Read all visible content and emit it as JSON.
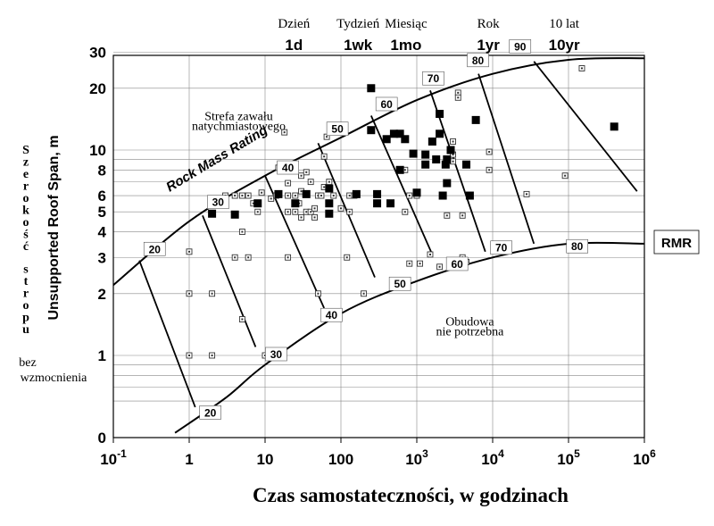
{
  "chart_data": {
    "type": "scatter",
    "title": "",
    "xlabel": "Czas samostateczności, w godzinach",
    "ylabel": "Unsupported Roof Span, m",
    "ylabel_polish": [
      "S",
      "z",
      "e",
      "r",
      "o",
      "k",
      "o",
      "ś",
      "ć",
      " ",
      "s",
      "t",
      "r",
      "o",
      "p",
      "u"
    ],
    "ylabel_polish_tail": [
      "bez",
      "wzmocnienia"
    ],
    "x_scale": "log",
    "y_scale": "log",
    "xlim": [
      0.1,
      1000000
    ],
    "ylim": [
      0.4,
      30
    ],
    "x_ticks": [
      {
        "value": 0.1,
        "base": "10",
        "exp": "-1"
      },
      {
        "value": 1,
        "base": "1",
        "exp": ""
      },
      {
        "value": 10,
        "base": "10",
        "exp": ""
      },
      {
        "value": 100,
        "base": "100",
        "exp": ""
      },
      {
        "value": 1000,
        "base": "10",
        "exp": "3"
      },
      {
        "value": 10000,
        "base": "10",
        "exp": "4"
      },
      {
        "value": 100000,
        "base": "10",
        "exp": "5"
      },
      {
        "value": 1000000,
        "base": "10",
        "exp": "6"
      }
    ],
    "y_ticks": [
      {
        "value": 1,
        "label": "1"
      },
      {
        "value": 2,
        "label": "2"
      },
      {
        "value": 3,
        "label": "3"
      },
      {
        "value": 4,
        "label": "4"
      },
      {
        "value": 5,
        "label": "5"
      },
      {
        "value": 6,
        "label": "6"
      },
      {
        "value": 8,
        "label": "8"
      },
      {
        "value": 10,
        "label": "10"
      },
      {
        "value": 20,
        "label": "20"
      },
      {
        "value": 30,
        "label": "30"
      }
    ],
    "y_zero_label": "0",
    "y_gridlines": [
      0.6,
      0.7,
      0.8,
      0.9,
      1,
      2,
      3,
      4,
      5,
      6,
      7,
      8,
      9,
      10,
      20,
      30
    ],
    "x_gridlines": [
      1,
      10,
      100,
      1000,
      10000,
      100000
    ],
    "time_markers": {
      "polish": [
        {
          "label": "Dzień",
          "x": 24
        },
        {
          "label": "Tydzień",
          "x": 168
        },
        {
          "label": "Miesiąc",
          "x": 720
        },
        {
          "label": "Rok",
          "x": 8760
        },
        {
          "label": "10 lat",
          "x": 87600
        }
      ],
      "english": [
        {
          "label": "1d",
          "x": 24
        },
        {
          "label": "1wk",
          "x": 168
        },
        {
          "label": "1mo",
          "x": 720
        },
        {
          "label": "1yr",
          "x": 8760
        },
        {
          "label": "10yr",
          "x": 87600
        }
      ]
    },
    "upper_boundary": [
      [
        0.1,
        2.2
      ],
      [
        1,
        4.5
      ],
      [
        10,
        7.5
      ],
      [
        100,
        11.5
      ],
      [
        1000,
        17.5
      ],
      [
        10000,
        23.5
      ],
      [
        100000,
        27.5
      ],
      [
        1000000,
        28
      ]
    ],
    "lower_boundary": [
      [
        0.65,
        0.42
      ],
      [
        3,
        0.62
      ],
      [
        10,
        0.9
      ],
      [
        100,
        1.6
      ],
      [
        1000,
        2.3
      ],
      [
        10000,
        3
      ],
      [
        100000,
        3.5
      ],
      [
        1000000,
        3.5
      ]
    ],
    "rmr_lines": [
      {
        "label": "20",
        "top": [
          0.22,
          2.9
        ],
        "bottom": [
          1.2,
          0.56
        ],
        "label_top": [
          0.35,
          3.25
        ],
        "label_bottom": [
          1.9,
          0.52
        ]
      },
      {
        "label": "30",
        "top": [
          1.5,
          4.8
        ],
        "bottom": [
          7.5,
          1.1
        ],
        "label_top": [
          2.4,
          5.5
        ],
        "label_bottom": [
          14,
          1.0
        ]
      },
      {
        "label": "40",
        "top": [
          10,
          7.5
        ],
        "bottom": [
          60,
          1.7
        ],
        "label_top": [
          20,
          8.1
        ],
        "label_bottom": [
          75,
          1.55
        ]
      },
      {
        "label": "50",
        "top": [
          50,
          10.8
        ],
        "bottom": [
          280,
          2.4
        ],
        "label_top": [
          90,
          12.5
        ],
        "label_bottom": [
          600,
          2.2
        ]
      },
      {
        "label": "60",
        "top": [
          250,
          14.7
        ],
        "bottom": [
          1600,
          3.1
        ],
        "label_top": [
          400,
          16.5
        ],
        "label_bottom": [
          3400,
          2.75
        ]
      },
      {
        "label": "70",
        "top": [
          1500,
          19.5
        ],
        "bottom": [
          8000,
          3.2
        ],
        "label_top": [
          1650,
          22
        ],
        "label_bottom": [
          13000,
          3.3
        ]
      },
      {
        "label": "80",
        "top": [
          6500,
          23.5
        ],
        "bottom": [
          35000,
          3.5
        ],
        "label_top": [
          6400,
          27
        ],
        "label_bottom": [
          130000,
          3.35
        ]
      },
      {
        "label": "90",
        "top": [
          35000,
          27
        ],
        "bottom": [
          800000,
          6.3
        ],
        "label_top": [
          23000,
          31.5
        ]
      }
    ],
    "annotations": [
      {
        "text": "Strefa zawału",
        "x": 4.5,
        "y": 14
      },
      {
        "text": "natychmiastowego",
        "x": 4.5,
        "y": 12.5
      },
      {
        "text": "Obudowa",
        "x": 5000,
        "y": 1.4
      },
      {
        "text": "nie potrzebna",
        "x": 5000,
        "y": 1.25
      }
    ],
    "curve_label": "Rock Mass Rating",
    "rmr_label": "RMR",
    "series": [
      {
        "name": "filled",
        "style": "filled-square",
        "points": [
          [
            2,
            4.9
          ],
          [
            4,
            4.85
          ],
          [
            8,
            5.5
          ],
          [
            15,
            6.1
          ],
          [
            25,
            5.5
          ],
          [
            35,
            6.1
          ],
          [
            70,
            6.5
          ],
          [
            70,
            5.5
          ],
          [
            70,
            4.9
          ],
          [
            160,
            6.1
          ],
          [
            250,
            20
          ],
          [
            250,
            12.5
          ],
          [
            300,
            6.1
          ],
          [
            300,
            5.5
          ],
          [
            400,
            11.3
          ],
          [
            450,
            5.5
          ],
          [
            500,
            12
          ],
          [
            600,
            12
          ],
          [
            600,
            8
          ],
          [
            700,
            11.3
          ],
          [
            900,
            9.6
          ],
          [
            1000,
            6.2
          ],
          [
            1300,
            9.5
          ],
          [
            1300,
            8.5
          ],
          [
            1600,
            11
          ],
          [
            1800,
            9
          ],
          [
            2000,
            15
          ],
          [
            2000,
            12
          ],
          [
            2200,
            6
          ],
          [
            2400,
            8.5
          ],
          [
            2500,
            9
          ],
          [
            2500,
            6.9
          ],
          [
            2800,
            10
          ],
          [
            4500,
            8.5
          ],
          [
            5000,
            6
          ],
          [
            6000,
            14
          ],
          [
            400000,
            13
          ]
        ]
      },
      {
        "name": "hollow",
        "style": "dotted-square",
        "points": [
          [
            1,
            3.2
          ],
          [
            1,
            2
          ],
          [
            1,
            1
          ],
          [
            2,
            2
          ],
          [
            2,
            1
          ],
          [
            3,
            6
          ],
          [
            4,
            6
          ],
          [
            4,
            3
          ],
          [
            5,
            6
          ],
          [
            5,
            4
          ],
          [
            5,
            1.5
          ],
          [
            6,
            6
          ],
          [
            6,
            3
          ],
          [
            7,
            5.5
          ],
          [
            8,
            5
          ],
          [
            9,
            6.2
          ],
          [
            10,
            1
          ],
          [
            12,
            5.8
          ],
          [
            14,
            6
          ],
          [
            15,
            8.2
          ],
          [
            18,
            12.2
          ],
          [
            20,
            6.9
          ],
          [
            20,
            6
          ],
          [
            20,
            5
          ],
          [
            20,
            3
          ],
          [
            22,
            8
          ],
          [
            25,
            8.5
          ],
          [
            25,
            6
          ],
          [
            25,
            5
          ],
          [
            28,
            5.5
          ],
          [
            30,
            7.5
          ],
          [
            30,
            6.3
          ],
          [
            30,
            4.7
          ],
          [
            35,
            7.8
          ],
          [
            35,
            5
          ],
          [
            40,
            7
          ],
          [
            40,
            5
          ],
          [
            45,
            4.7
          ],
          [
            45,
            5.2
          ],
          [
            50,
            6
          ],
          [
            50,
            2
          ],
          [
            55,
            6
          ],
          [
            60,
            6.6
          ],
          [
            60,
            9.3
          ],
          [
            65,
            11.6
          ],
          [
            70,
            7
          ],
          [
            80,
            6
          ],
          [
            100,
            5.2
          ],
          [
            120,
            3
          ],
          [
            130,
            6
          ],
          [
            130,
            5
          ],
          [
            150,
            6
          ],
          [
            200,
            2
          ],
          [
            500,
            12
          ],
          [
            700,
            8
          ],
          [
            700,
            5
          ],
          [
            800,
            2.8
          ],
          [
            800,
            6
          ],
          [
            1000,
            6
          ],
          [
            1100,
            2.8
          ],
          [
            1500,
            3.1
          ],
          [
            2000,
            2.7
          ],
          [
            2500,
            4.8
          ],
          [
            3000,
            9.5
          ],
          [
            3000,
            8.8
          ],
          [
            3000,
            11
          ],
          [
            3500,
            19
          ],
          [
            3500,
            18
          ],
          [
            4000,
            4.8
          ],
          [
            4000,
            3
          ],
          [
            4500,
            2.85
          ],
          [
            9000,
            8
          ],
          [
            9000,
            9.8
          ],
          [
            28000,
            6.1
          ],
          [
            90000,
            7.5
          ],
          [
            150000,
            25
          ]
        ]
      }
    ]
  }
}
